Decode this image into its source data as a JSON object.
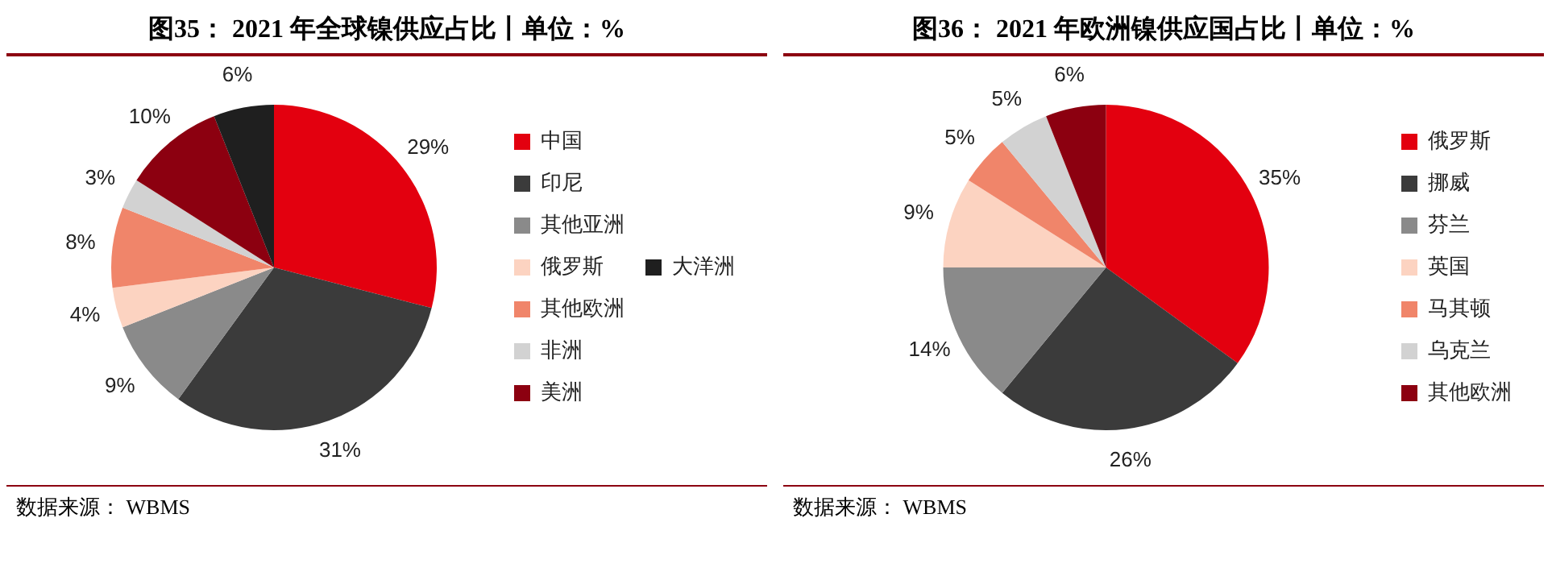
{
  "chart_data": [
    {
      "type": "pie",
      "title": "图35：  2021 年全球镍供应占比丨单位：%",
      "categories": [
        "中国",
        "印尼",
        "其他亚洲",
        "俄罗斯",
        "其他欧洲",
        "非洲",
        "美洲",
        "大洋洲"
      ],
      "values": [
        29,
        31,
        9,
        4,
        8,
        3,
        10,
        6
      ],
      "value_labels": [
        "29%",
        "31%",
        "9%",
        "4%",
        "8%",
        "3%",
        "10%",
        "6%"
      ],
      "colors": [
        "#e3000f",
        "#3b3b3b",
        "#8a8a8a",
        "#fcd3c1",
        "#f0856a",
        "#d2d2d2",
        "#8c0010",
        "#1f1f1f"
      ],
      "legend": "right",
      "annotations": [
        "数据来源：  WBMS"
      ]
    },
    {
      "type": "pie",
      "title": "图36：  2021 年欧洲镍供应国占比丨单位：%",
      "categories": [
        "俄罗斯",
        "挪威",
        "芬兰",
        "英国",
        "马其顿",
        "乌克兰",
        "其他欧洲"
      ],
      "values": [
        35,
        26,
        14,
        9,
        5,
        5,
        6
      ],
      "value_labels": [
        "35%",
        "26%",
        "14%",
        "9%",
        "5%",
        "5%",
        "6%"
      ],
      "colors": [
        "#e3000f",
        "#3b3b3b",
        "#8a8a8a",
        "#fcd3c1",
        "#f0856a",
        "#d2d2d2",
        "#8c0010"
      ],
      "legend": "right",
      "annotations": [
        "数据来源：  WBMS"
      ]
    }
  ]
}
